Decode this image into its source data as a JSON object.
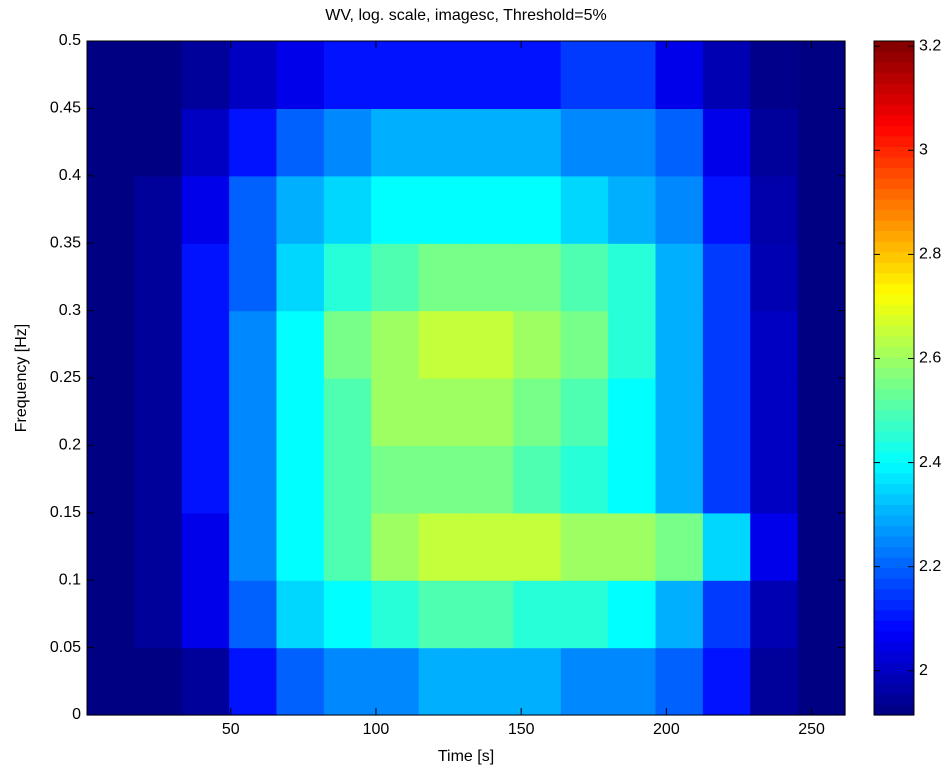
{
  "chart_data": {
    "type": "heatmap",
    "title": "WV, log. scale, imagesc, Threshold=5%",
    "x_label": "Time [s]",
    "y_label": "Frequency [Hz]",
    "xlim": [
      0.5,
      261.5
    ],
    "ylim": [
      0,
      0.5
    ],
    "xticks": [
      50,
      100,
      150,
      200,
      250
    ],
    "yticks": [
      0,
      0.05,
      0.1,
      0.15,
      0.2,
      0.25,
      0.3,
      0.35,
      0.4,
      0.45,
      0.5
    ],
    "colormap": "jet",
    "clim": [
      1.915,
      3.21
    ],
    "cticks": [
      2,
      2.2,
      2.4,
      2.6,
      2.8,
      3,
      3.2
    ],
    "z": [
      [
        1.92,
        1.92,
        1.95,
        2.1,
        2.2,
        2.25,
        2.25,
        2.3,
        2.3,
        2.3,
        2.25,
        2.25,
        2.2,
        2.1,
        1.95,
        1.92
      ],
      [
        1.92,
        1.95,
        2.05,
        2.2,
        2.35,
        2.4,
        2.45,
        2.5,
        2.5,
        2.45,
        2.45,
        2.4,
        2.3,
        2.15,
        1.98,
        1.92
      ],
      [
        1.92,
        1.95,
        2.05,
        2.25,
        2.4,
        2.5,
        2.6,
        2.65,
        2.65,
        2.65,
        2.6,
        2.6,
        2.55,
        2.35,
        2.05,
        1.92
      ],
      [
        1.92,
        1.95,
        2.1,
        2.25,
        2.4,
        2.5,
        2.55,
        2.55,
        2.55,
        2.5,
        2.45,
        2.4,
        2.3,
        2.15,
        2.0,
        1.92
      ],
      [
        1.92,
        1.95,
        2.1,
        2.25,
        2.4,
        2.5,
        2.6,
        2.6,
        2.6,
        2.55,
        2.5,
        2.4,
        2.3,
        2.15,
        2.0,
        1.92
      ],
      [
        1.92,
        1.95,
        2.1,
        2.25,
        2.4,
        2.55,
        2.6,
        2.65,
        2.65,
        2.6,
        2.55,
        2.45,
        2.3,
        2.15,
        2.0,
        1.92
      ],
      [
        1.92,
        1.95,
        2.1,
        2.2,
        2.35,
        2.45,
        2.5,
        2.55,
        2.55,
        2.55,
        2.5,
        2.45,
        2.3,
        2.15,
        1.98,
        1.92
      ],
      [
        1.92,
        1.95,
        2.05,
        2.2,
        2.3,
        2.35,
        2.4,
        2.4,
        2.4,
        2.4,
        2.35,
        2.3,
        2.25,
        2.1,
        1.97,
        1.92
      ],
      [
        1.92,
        1.92,
        2.0,
        2.1,
        2.2,
        2.25,
        2.3,
        2.3,
        2.3,
        2.3,
        2.25,
        2.25,
        2.2,
        2.05,
        1.95,
        1.92
      ],
      [
        1.92,
        1.92,
        1.95,
        2.0,
        2.05,
        2.1,
        2.1,
        2.1,
        2.1,
        2.1,
        2.15,
        2.15,
        2.05,
        1.98,
        1.93,
        1.92
      ]
    ]
  }
}
